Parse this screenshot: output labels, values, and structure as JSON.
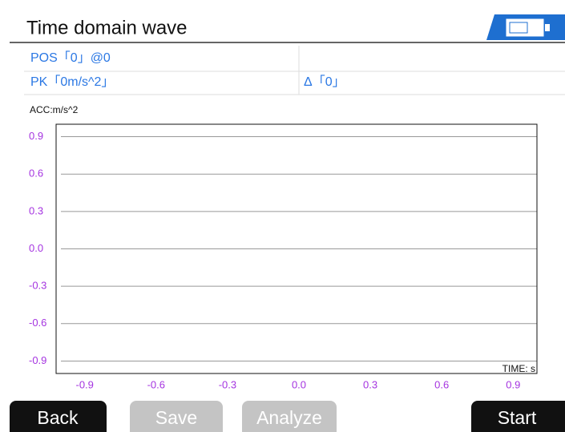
{
  "header": {
    "title": "Time domain wave"
  },
  "info": {
    "pos": "POS「0」@0",
    "pk": "PK「0m/s^2」",
    "delta": "Δ「0」"
  },
  "chart_data": {
    "type": "line",
    "ylabel": "ACC:m/s^2",
    "xlabel": "TIME: s",
    "ylim": [
      -1,
      1
    ],
    "yticks": [
      0.9,
      0.6,
      0.3,
      {
        "value": 0,
        "label": "0.0"
      },
      -0.3,
      -0.6,
      -0.9
    ],
    "xlim": [
      -1,
      1
    ],
    "xticks": [
      -0.9,
      -0.6,
      -0.3,
      {
        "value": 0,
        "label": "0.0"
      },
      0.3,
      0.6,
      0.9
    ],
    "grid": true,
    "series": []
  },
  "buttons": {
    "back": "Back",
    "save": "Save",
    "analyze": "Analyze",
    "start": "Start"
  }
}
